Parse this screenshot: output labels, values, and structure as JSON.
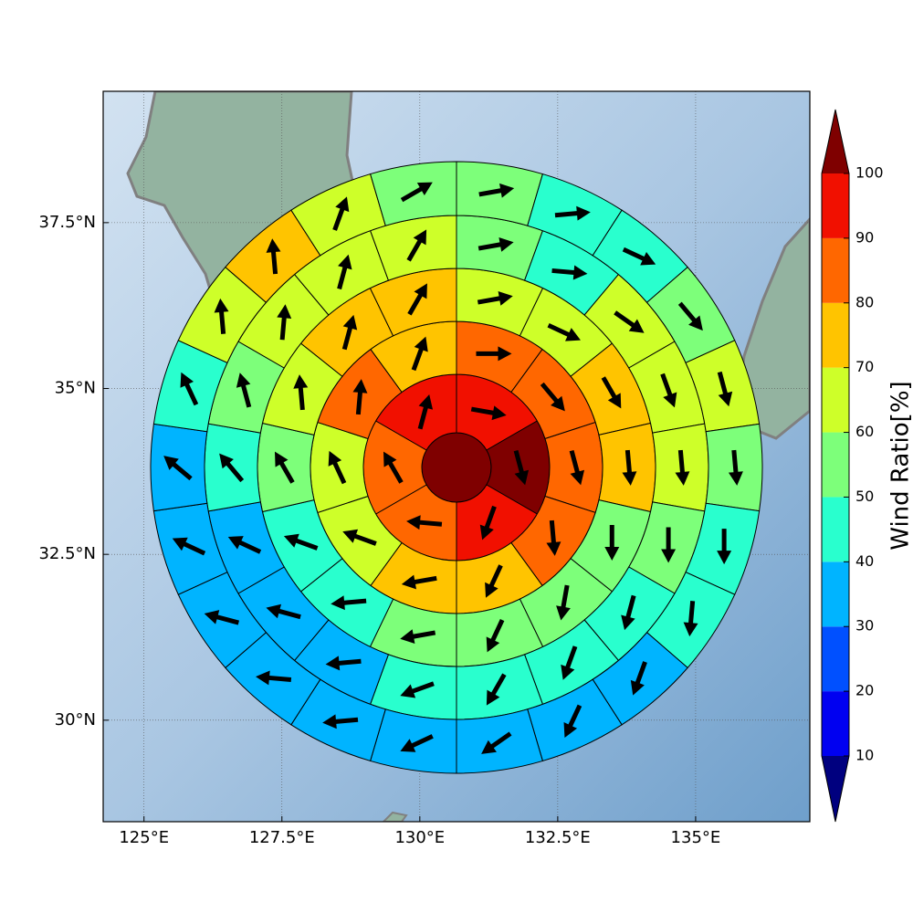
{
  "chart_data": {
    "type": "polar-grid-map",
    "xlim": [
      124.26,
      137.07
    ],
    "ylim": [
      28.47,
      39.48
    ],
    "xticks": [
      {
        "value": 125,
        "label": "125°E"
      },
      {
        "value": 127.5,
        "label": "127.5°E"
      },
      {
        "value": 130,
        "label": "130°E"
      },
      {
        "value": 132.5,
        "label": "132.5°E"
      },
      {
        "value": 135,
        "label": "135°E"
      }
    ],
    "yticks": [
      {
        "value": 30,
        "label": "30°N"
      },
      {
        "value": 32.5,
        "label": "32.5°N"
      },
      {
        "value": 35,
        "label": "35°N"
      },
      {
        "value": 37.5,
        "label": "37.5°N"
      }
    ],
    "grid": true,
    "center_value": 105,
    "rings": [
      {
        "values": [
          95,
          105,
          95,
          85,
          85,
          95
        ],
        "directions": [
          100,
          165,
          200,
          275,
          330,
          15
        ]
      },
      {
        "values": [
          85,
          85,
          85,
          85,
          75,
          75,
          65,
          65,
          85,
          75
        ],
        "directions": [
          90,
          140,
          165,
          175,
          205,
          260,
          290,
          335,
          5,
          20
        ]
      },
      {
        "values": [
          65,
          65,
          75,
          75,
          55,
          55,
          55,
          55,
          45,
          45,
          55,
          65,
          75,
          75
        ],
        "directions": [
          80,
          115,
          150,
          175,
          180,
          190,
          205,
          260,
          265,
          290,
          330,
          355,
          15,
          30
        ]
      },
      {
        "values": [
          55,
          45,
          65,
          65,
          65,
          55,
          45,
          45,
          45,
          45,
          35,
          35,
          35,
          45,
          55,
          65,
          65,
          65
        ],
        "directions": [
          80,
          95,
          125,
          160,
          175,
          180,
          195,
          200,
          210,
          250,
          265,
          285,
          295,
          320,
          345,
          5,
          15,
          30
        ]
      },
      {
        "values": [
          55,
          45,
          45,
          55,
          65,
          55,
          45,
          45,
          35,
          35,
          35,
          35,
          35,
          35,
          35,
          35,
          35,
          45,
          65,
          75,
          65,
          55
        ],
        "directions": [
          80,
          85,
          115,
          140,
          165,
          175,
          180,
          185,
          200,
          205,
          235,
          245,
          265,
          275,
          285,
          295,
          310,
          335,
          355,
          355,
          20,
          60
        ]
      }
    ],
    "colorbar": {
      "label": "Wind Ratio[%]",
      "ticks": [
        10,
        20,
        30,
        40,
        50,
        60,
        70,
        80,
        90,
        100
      ],
      "colors": [
        "#00007f",
        "#0000f1",
        "#0050ff",
        "#00b4ff",
        "#29ffce",
        "#7dff7a",
        "#ceff29",
        "#ffc400",
        "#ff6700",
        "#f11000",
        "#7f0000"
      ],
      "extend": "both"
    }
  }
}
